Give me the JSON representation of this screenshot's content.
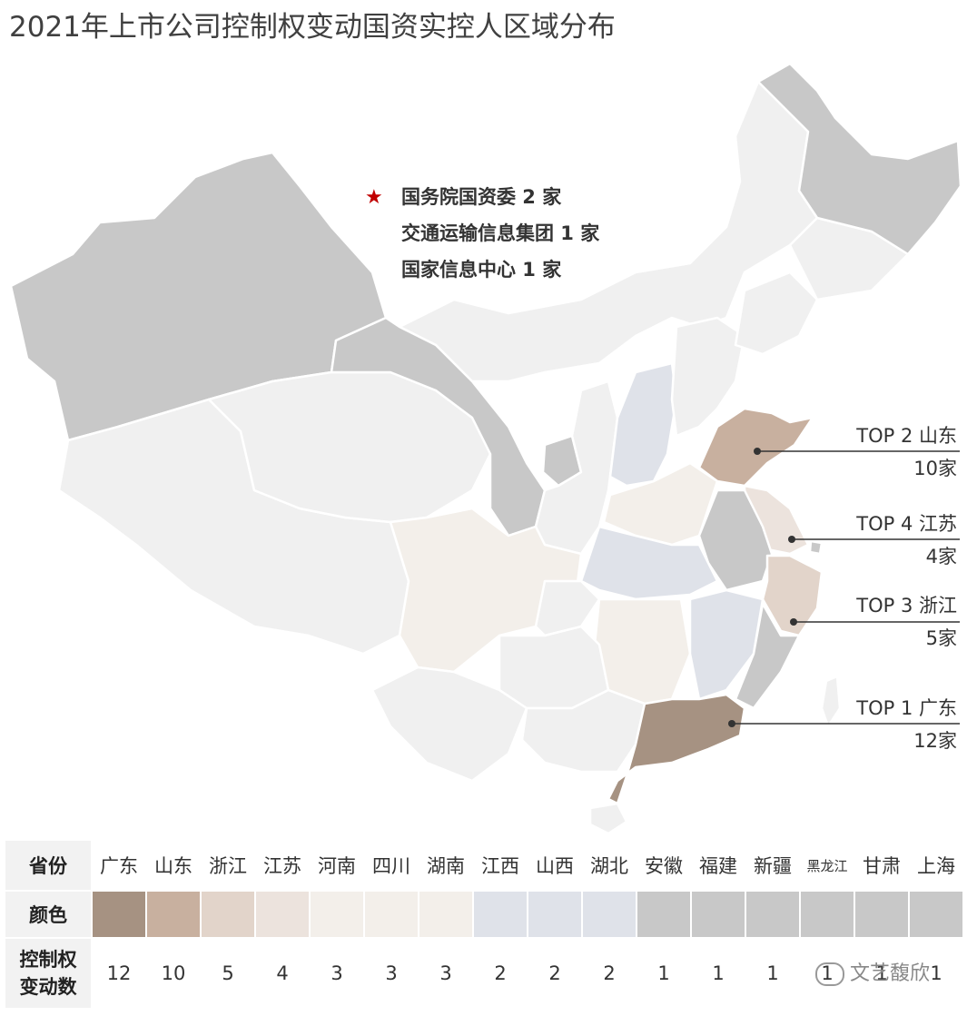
{
  "title": "2021年上市公司控制权变动国资实控人区域分布",
  "central": {
    "star_icon": "star-icon",
    "star_color": "#c00000",
    "items": [
      "国务院国资委 2 家",
      "交通运输信息集团 1 家",
      "国家信息中心 1 家"
    ]
  },
  "callouts": [
    {
      "label": "TOP 2  山东",
      "count": "10家"
    },
    {
      "label": "TOP 4  江苏",
      "count": "4家"
    },
    {
      "label": "TOP 3  浙江",
      "count": "5家"
    },
    {
      "label": "TOP 1  广东",
      "count": "12家"
    }
  ],
  "legend": {
    "row_labels": {
      "province": "省份",
      "color": "颜色",
      "count": "控制权\n变动数"
    },
    "provinces": [
      "广东",
      "山东",
      "浙江",
      "江苏",
      "河南",
      "四川",
      "湖南",
      "江西",
      "山西",
      "湖北",
      "安徽",
      "福建",
      "新疆",
      "黑龙江",
      "甘肃",
      "上海"
    ],
    "colors": [
      "#a69282",
      "#c8b09f",
      "#e2d4ca",
      "#ece3dd",
      "#f3efea",
      "#f3efea",
      "#f3efea",
      "#dfe2e9",
      "#dfe2e9",
      "#dfe2e9",
      "#c8c8c8",
      "#c8c8c8",
      "#c8c8c8",
      "#c8c8c8",
      "#c8c8c8",
      "#c8c8c8"
    ],
    "counts": [
      "12",
      "10",
      "5",
      "4",
      "3",
      "3",
      "3",
      "2",
      "2",
      "2",
      "1",
      "1",
      "1",
      "1",
      "1",
      "1"
    ]
  },
  "watermark": "文艺馥欣"
}
